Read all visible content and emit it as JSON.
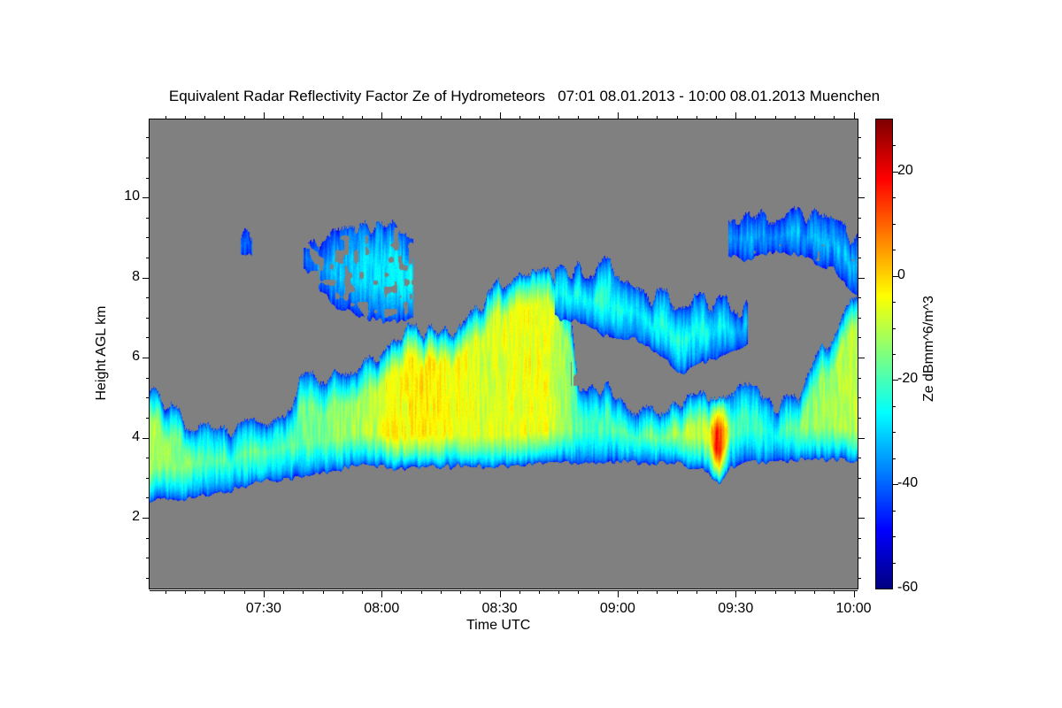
{
  "chart_data": {
    "type": "heatmap",
    "title": "Equivalent Radar Reflectivity Factor Ze of Hydrometeors   07:01 08.01.2013 - 10:00 08.01.2013 Muenchen",
    "xlabel": "Time UTC",
    "ylabel": "Height AGL km",
    "colorbar_label": "Ze dBmm^6/m^3",
    "x_unit": "minutes after 07:00 UTC",
    "xlim": [
      1,
      181
    ],
    "ylim": [
      0.23,
      11.95
    ],
    "clim": [
      -60,
      30
    ],
    "colormap": "jet",
    "background_color": "#808080",
    "x_ticks": [
      {
        "v": 30,
        "label": "07:30"
      },
      {
        "v": 60,
        "label": "08:00"
      },
      {
        "v": 90,
        "label": "08:30"
      },
      {
        "v": 120,
        "label": "09:00"
      },
      {
        "v": 150,
        "label": "09:30"
      },
      {
        "v": 180,
        "label": "10:00"
      }
    ],
    "y_ticks": [
      {
        "v": 2,
        "label": "2"
      },
      {
        "v": 4,
        "label": "4"
      },
      {
        "v": 6,
        "label": "6"
      },
      {
        "v": 8,
        "label": "8"
      },
      {
        "v": 10,
        "label": "10"
      }
    ],
    "c_ticks": [
      {
        "v": -60,
        "label": "-60"
      },
      {
        "v": -40,
        "label": "-40"
      },
      {
        "v": -20,
        "label": "-20"
      },
      {
        "v": 0,
        "label": "0"
      },
      {
        "v": 20,
        "label": "20"
      }
    ],
    "echo_layers": [
      {
        "name": "main-precip-layer",
        "peak_dBZ_profile": true,
        "density": 1.0,
        "points": [
          [
            1,
            2.45,
            5.4,
            -12
          ],
          [
            5,
            2.45,
            4.7,
            -14
          ],
          [
            10,
            2.5,
            4.4,
            -15
          ],
          [
            16,
            2.55,
            4.25,
            -18
          ],
          [
            22,
            2.7,
            4.3,
            -18
          ],
          [
            30,
            2.95,
            4.4,
            -15
          ],
          [
            37,
            3.0,
            4.5,
            -17
          ],
          [
            39,
            3.0,
            5.4,
            -18
          ],
          [
            46,
            3.15,
            5.4,
            -15
          ],
          [
            53,
            3.3,
            5.8,
            -12
          ],
          [
            58,
            3.3,
            5.8,
            -10
          ],
          [
            61,
            3.25,
            6.5,
            -5
          ],
          [
            70,
            3.25,
            6.7,
            -2
          ],
          [
            80,
            3.3,
            6.6,
            -5
          ],
          [
            87,
            3.3,
            7.6,
            -8
          ],
          [
            95,
            3.3,
            8.1,
            -5
          ],
          [
            102,
            3.4,
            8.1,
            -6
          ],
          [
            108,
            3.4,
            7.0,
            -15
          ],
          [
            110,
            3.4,
            5.3,
            -20
          ],
          [
            118,
            3.4,
            5.2,
            -20
          ],
          [
            124,
            3.4,
            4.7,
            -15
          ],
          [
            135,
            3.35,
            4.8,
            -10
          ],
          [
            143,
            3.2,
            5.0,
            -10
          ],
          [
            145,
            2.85,
            5.2,
            18
          ],
          [
            147,
            3.0,
            5.2,
            5
          ],
          [
            149,
            3.3,
            5.2,
            -20
          ],
          [
            155,
            3.4,
            5.4,
            -22
          ],
          [
            160,
            3.4,
            4.7,
            -20
          ],
          [
            166,
            3.45,
            5.1,
            -15
          ],
          [
            174,
            3.45,
            6.5,
            -12
          ],
          [
            181,
            3.45,
            7.7,
            -10
          ]
        ]
      },
      {
        "name": "upper-ice-layer",
        "density": 0.95,
        "points": [
          [
            104,
            7.0,
            8.1,
            -22
          ],
          [
            110,
            6.9,
            8.2,
            -22
          ],
          [
            118,
            6.5,
            8.3,
            -24
          ],
          [
            124,
            6.5,
            7.6,
            -24
          ],
          [
            130,
            6.1,
            7.5,
            -22
          ],
          [
            136,
            5.6,
            7.4,
            -24
          ],
          [
            142,
            5.9,
            7.4,
            -24
          ],
          [
            148,
            6.1,
            7.4,
            -26
          ],
          [
            153,
            6.3,
            7.2,
            -28
          ]
        ]
      },
      {
        "name": "generating-cells",
        "density": 0.55,
        "points": [
          [
            40,
            8.2,
            8.9,
            -34
          ],
          [
            48,
            7.3,
            9.1,
            -32
          ],
          [
            55,
            7.0,
            9.3,
            -30
          ],
          [
            62,
            6.9,
            9.4,
            -28
          ],
          [
            68,
            7.0,
            9.0,
            -28
          ]
        ]
      },
      {
        "name": "top-cirrus",
        "density": 0.8,
        "points": [
          [
            148,
            8.6,
            9.2,
            -32
          ],
          [
            152,
            8.4,
            9.6,
            -30
          ],
          [
            160,
            8.7,
            9.6,
            -30
          ],
          [
            168,
            8.5,
            9.5,
            -30
          ],
          [
            175,
            8.2,
            9.3,
            -30
          ],
          [
            181,
            7.5,
            9.0,
            -30
          ]
        ]
      },
      {
        "name": "isolated-cell",
        "density": 0.6,
        "points": [
          [
            24,
            8.6,
            9.0,
            -36
          ],
          [
            27,
            8.6,
            9.1,
            -36
          ]
        ]
      }
    ]
  }
}
